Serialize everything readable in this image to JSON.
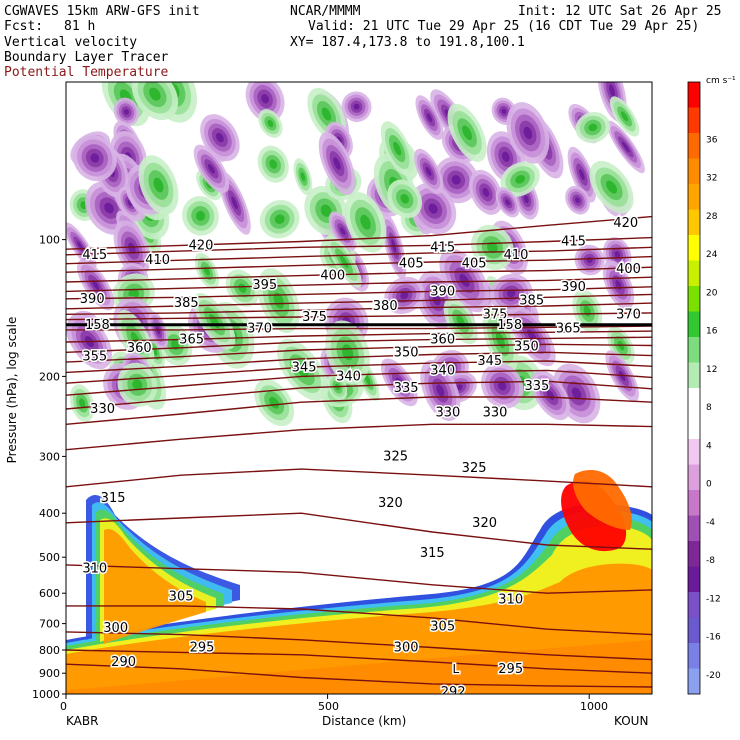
{
  "header": {
    "model": "CGWAVES 15km ARW-GFS init",
    "center": "NCAR/MMMM",
    "init": "Init: 12 UTC Sat 26 Apr 25",
    "fcst_label": "Fcst:",
    "fcst_value": "81 h",
    "valid": "Valid: 21 UTC Tue 29 Apr 25 (16 CDT Tue 29 Apr 25)",
    "field1": "Vertical velocity",
    "field2": "Boundary Layer Tracer",
    "field3": "Potential Temperature",
    "xy": "XY= 187.4,173.8 to 191.8,100.1"
  },
  "colors": {
    "theta_contour": "#7a1010",
    "tropopause_line": "#000000"
  },
  "chart_data": {
    "type": "heatmap",
    "xlabel": "Distance (km)",
    "ylabel": "Pressure (hPa), log scale",
    "x_ticks": [
      0,
      500,
      1000
    ],
    "xlim": [
      0,
      1120
    ],
    "y_ticks": [
      100,
      200,
      300,
      400,
      500,
      600,
      700,
      800,
      900,
      1000
    ],
    "ylim": [
      1000,
      45
    ],
    "y_scale": "log",
    "left_station": "KABR",
    "right_station": "KOUN",
    "colorbar": {
      "unit": "cm s⁻¹",
      "tick_labels": [
        36,
        32,
        28,
        24,
        20,
        16,
        12,
        8,
        4,
        0,
        -4,
        -8,
        -12,
        -16,
        -20
      ],
      "colors": [
        "#ff0000",
        "#ff3a00",
        "#ff6a00",
        "#ff8c00",
        "#ffa500",
        "#ffc800",
        "#ffff00",
        "#c8f000",
        "#7ae000",
        "#32c832",
        "#7ddc7d",
        "#b4ebb4",
        "#ffffff",
        "#ffffff",
        "#f0c8f0",
        "#dca0dc",
        "#c878c8",
        "#a050b4",
        "#7d2896",
        "#6a1b9a",
        "#7b4fc8",
        "#6a5acd",
        "#7a80e6",
        "#8ca0f0"
      ]
    },
    "theta_contours": [
      {
        "theta": 420,
        "p": [
          105,
          103,
          101,
          98,
          93,
          89
        ]
      },
      {
        "theta": 415,
        "p": [
          108,
          106,
          104,
          103,
          101,
          99
        ]
      },
      {
        "theta": 410,
        "p": [
          113,
          111,
          109,
          107,
          106,
          104
        ]
      },
      {
        "theta": 405,
        "p": [
          118,
          116,
          114,
          112,
          111,
          109
        ]
      },
      {
        "theta": 400,
        "p": [
          124,
          122,
          120,
          118,
          117,
          115
        ]
      },
      {
        "theta": 395,
        "p": [
          130,
          128,
          126,
          124,
          123,
          121
        ]
      },
      {
        "theta": 390,
        "p": [
          135,
          134,
          132,
          130,
          129,
          127
        ]
      },
      {
        "theta": 385,
        "p": [
          142,
          140,
          138,
          136,
          134,
          132
        ]
      },
      {
        "theta": 380,
        "p": [
          146,
          145,
          143,
          141,
          140,
          138
        ]
      },
      {
        "theta": 375,
        "p": [
          150,
          149,
          148,
          147,
          146,
          145
        ]
      },
      {
        "theta": 370,
        "p": [
          158,
          158,
          157,
          157,
          156,
          155
        ]
      },
      {
        "theta": 365,
        "p": [
          168,
          166,
          163,
          161,
          160,
          159
        ]
      },
      {
        "theta": 360,
        "p": [
          177,
          173,
          168,
          166,
          165,
          164
        ]
      },
      {
        "theta": 355,
        "p": [
          186,
          181,
          175,
          172,
          170,
          171
        ]
      },
      {
        "theta": 350,
        "p": [
          196,
          190,
          183,
          179,
          177,
          180
        ]
      },
      {
        "theta": 345,
        "p": [
          207,
          199,
          191,
          187,
          185,
          190
        ]
      },
      {
        "theta": 340,
        "p": [
          220,
          210,
          200,
          196,
          194,
          201
        ]
      },
      {
        "theta": 335,
        "p": [
          236,
          224,
          212,
          207,
          205,
          213
        ]
      },
      {
        "theta": 330,
        "p": [
          255,
          242,
          228,
          222,
          222,
          228
        ]
      },
      {
        "theta": 325,
        "p": [
          290,
          275,
          262,
          255,
          255,
          258
        ]
      },
      {
        "theta": 320,
        "p": [
          350,
          330,
          320,
          330,
          340,
          350
        ]
      },
      {
        "theta": 315,
        "p": [
          420,
          410,
          400,
          440,
          470,
          480
        ]
      },
      {
        "theta": 310,
        "p": [
          520,
          530,
          540,
          575,
          600,
          590
        ]
      },
      {
        "theta": 305,
        "p": [
          640,
          640,
          650,
          680,
          720,
          740
        ]
      },
      {
        "theta": 300,
        "p": [
          730,
          740,
          760,
          790,
          820,
          840
        ]
      },
      {
        "theta": 295,
        "p": [
          800,
          810,
          820,
          850,
          880,
          900
        ]
      },
      {
        "theta": 290,
        "p": [
          860,
          880,
          920,
          950,
          960,
          965
        ]
      }
    ],
    "theta_x": [
      0,
      220,
      450,
      700,
      920,
      1120
    ],
    "contour_labels": [
      {
        "text": "420",
        "x": 258,
        "p": 103
      },
      {
        "text": "415",
        "x": 55,
        "p": 108
      },
      {
        "text": "410",
        "x": 175,
        "p": 111
      },
      {
        "text": "400",
        "x": 510,
        "p": 120
      },
      {
        "text": "405",
        "x": 660,
        "p": 113
      },
      {
        "text": "415",
        "x": 720,
        "p": 104
      },
      {
        "text": "410",
        "x": 860,
        "p": 108
      },
      {
        "text": "405",
        "x": 780,
        "p": 113
      },
      {
        "text": "415",
        "x": 970,
        "p": 101
      },
      {
        "text": "420",
        "x": 1070,
        "p": 92
      },
      {
        "text": "400",
        "x": 1075,
        "p": 116
      },
      {
        "text": "395",
        "x": 380,
        "p": 126
      },
      {
        "text": "390",
        "x": 50,
        "p": 135
      },
      {
        "text": "385",
        "x": 230,
        "p": 138
      },
      {
        "text": "390",
        "x": 720,
        "p": 130
      },
      {
        "text": "380",
        "x": 610,
        "p": 140
      },
      {
        "text": "385",
        "x": 890,
        "p": 136
      },
      {
        "text": "390",
        "x": 970,
        "p": 127
      },
      {
        "text": "375",
        "x": 820,
        "p": 146
      },
      {
        "text": "375",
        "x": 475,
        "p": 148
      },
      {
        "text": "370",
        "x": 370,
        "p": 157
      },
      {
        "text": "370",
        "x": 1075,
        "p": 146
      },
      {
        "text": "365",
        "x": 240,
        "p": 166
      },
      {
        "text": "365",
        "x": 960,
        "p": 157
      },
      {
        "text": "360",
        "x": 140,
        "p": 173
      },
      {
        "text": "360",
        "x": 720,
        "p": 166
      },
      {
        "text": "355",
        "x": 55,
        "p": 181
      },
      {
        "text": "350",
        "x": 650,
        "p": 177
      },
      {
        "text": "350",
        "x": 880,
        "p": 172
      },
      {
        "text": "345",
        "x": 455,
        "p": 191
      },
      {
        "text": "345",
        "x": 810,
        "p": 185
      },
      {
        "text": "340",
        "x": 540,
        "p": 200
      },
      {
        "text": "340",
        "x": 720,
        "p": 194
      },
      {
        "text": "335",
        "x": 650,
        "p": 212
      },
      {
        "text": "335",
        "x": 900,
        "p": 210
      },
      {
        "text": "330",
        "x": 70,
        "p": 236
      },
      {
        "text": "330",
        "x": 730,
        "p": 240
      },
      {
        "text": "330",
        "x": 820,
        "p": 240
      },
      {
        "text": "325",
        "x": 630,
        "p": 300
      },
      {
        "text": "325",
        "x": 780,
        "p": 318
      },
      {
        "text": "320",
        "x": 620,
        "p": 380
      },
      {
        "text": "320",
        "x": 800,
        "p": 420
      },
      {
        "text": "315",
        "x": 90,
        "p": 370
      },
      {
        "text": "315",
        "x": 700,
        "p": 490
      },
      {
        "text": "310",
        "x": 55,
        "p": 530
      },
      {
        "text": "310",
        "x": 850,
        "p": 620
      },
      {
        "text": "305",
        "x": 220,
        "p": 610
      },
      {
        "text": "305",
        "x": 720,
        "p": 710
      },
      {
        "text": "300",
        "x": 95,
        "p": 715
      },
      {
        "text": "300",
        "x": 650,
        "p": 790
      },
      {
        "text": "295",
        "x": 260,
        "p": 790
      },
      {
        "text": "295",
        "x": 850,
        "p": 880
      },
      {
        "text": "290",
        "x": 110,
        "p": 850
      },
      {
        "text": "292",
        "x": 740,
        "p": 990
      },
      {
        "text": "158",
        "x": 60,
        "p": 154
      },
      {
        "text": "158",
        "x": 848,
        "p": 154
      },
      {
        "text": "L",
        "x": 745,
        "p": 880
      }
    ]
  }
}
